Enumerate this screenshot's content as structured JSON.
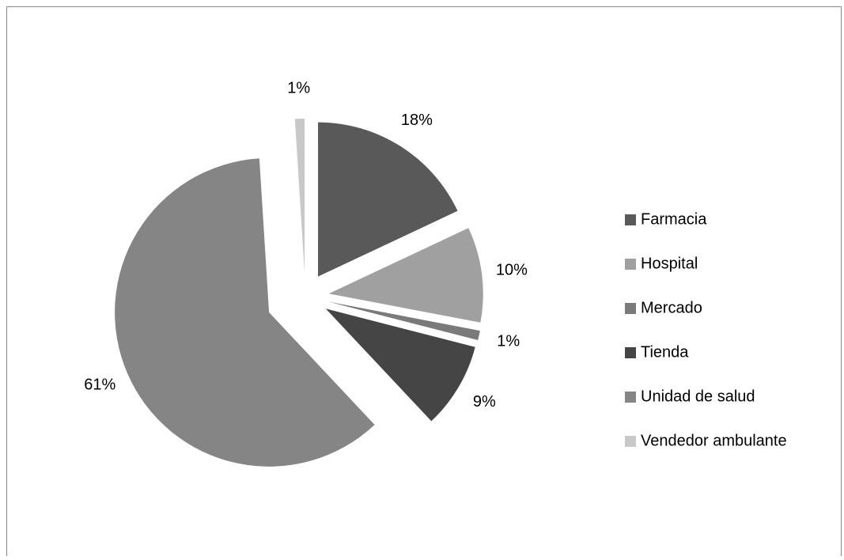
{
  "chart_data": {
    "type": "pie",
    "categories": [
      "Farmacia",
      "Hospital",
      "Mercado",
      "Tienda",
      "Unidad de salud",
      "Vendedor ambulante"
    ],
    "values": [
      18,
      10,
      1,
      9,
      61,
      1
    ],
    "value_labels": [
      "18%",
      "10%",
      "1%",
      "9%",
      "61%",
      "1%"
    ],
    "colors": [
      "#595959",
      "#a0a0a0",
      "#7a7a7a",
      "#454545",
      "#858585",
      "#c8c8c8"
    ],
    "legend": "right"
  }
}
